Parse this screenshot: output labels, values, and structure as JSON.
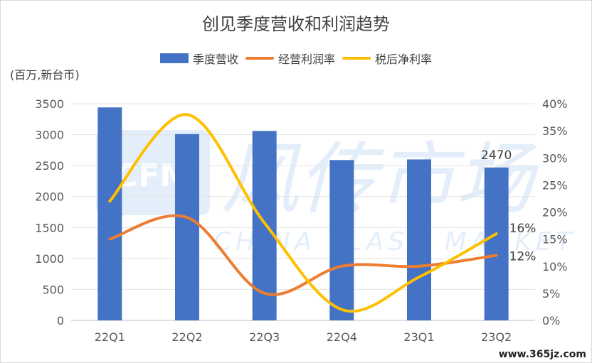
{
  "chart_data": {
    "type": "bar",
    "title": "创见季度营收和利润趋势",
    "unit_label": "(百万,新台币)",
    "categories": [
      "22Q1",
      "22Q2",
      "22Q3",
      "22Q4",
      "23Q1",
      "23Q2"
    ],
    "series": [
      {
        "name": "季度营收",
        "kind": "bar",
        "axis": "left",
        "color": "#4472C4",
        "values": [
          3440,
          3010,
          3060,
          2590,
          2600,
          2470
        ]
      },
      {
        "name": "经营利润率",
        "kind": "line",
        "axis": "right",
        "color": "#ED7D31",
        "values": [
          15,
          19,
          5,
          10,
          10,
          12
        ]
      },
      {
        "name": "税后净利率",
        "kind": "line",
        "axis": "right",
        "color": "#FFC000",
        "values": [
          22,
          38,
          18,
          2,
          8,
          16
        ]
      }
    ],
    "left_axis": {
      "min": 0,
      "max": 3500,
      "ticks": [
        "0",
        "500",
        "1000",
        "1500",
        "2000",
        "2500",
        "3000",
        "3500"
      ]
    },
    "right_axis": {
      "min": 0,
      "max": 40,
      "ticks": [
        "0%",
        "5%",
        "10%",
        "15%",
        "20%",
        "25%",
        "30%",
        "35%",
        "40%"
      ]
    },
    "data_labels": [
      {
        "series": "季度营收",
        "category": "23Q2",
        "text": "2470"
      },
      {
        "series": "税后净利率",
        "category": "23Q2",
        "text": "16%"
      },
      {
        "series": "经营利润率",
        "category": "23Q2",
        "text": "12%"
      }
    ],
    "legend_position": "top",
    "grid": true
  },
  "watermark": {
    "brand": "风传市场",
    "brand_en": "CHINA FLASH MARKET",
    "logo": "CFM",
    "site": "www.365jz.com"
  }
}
